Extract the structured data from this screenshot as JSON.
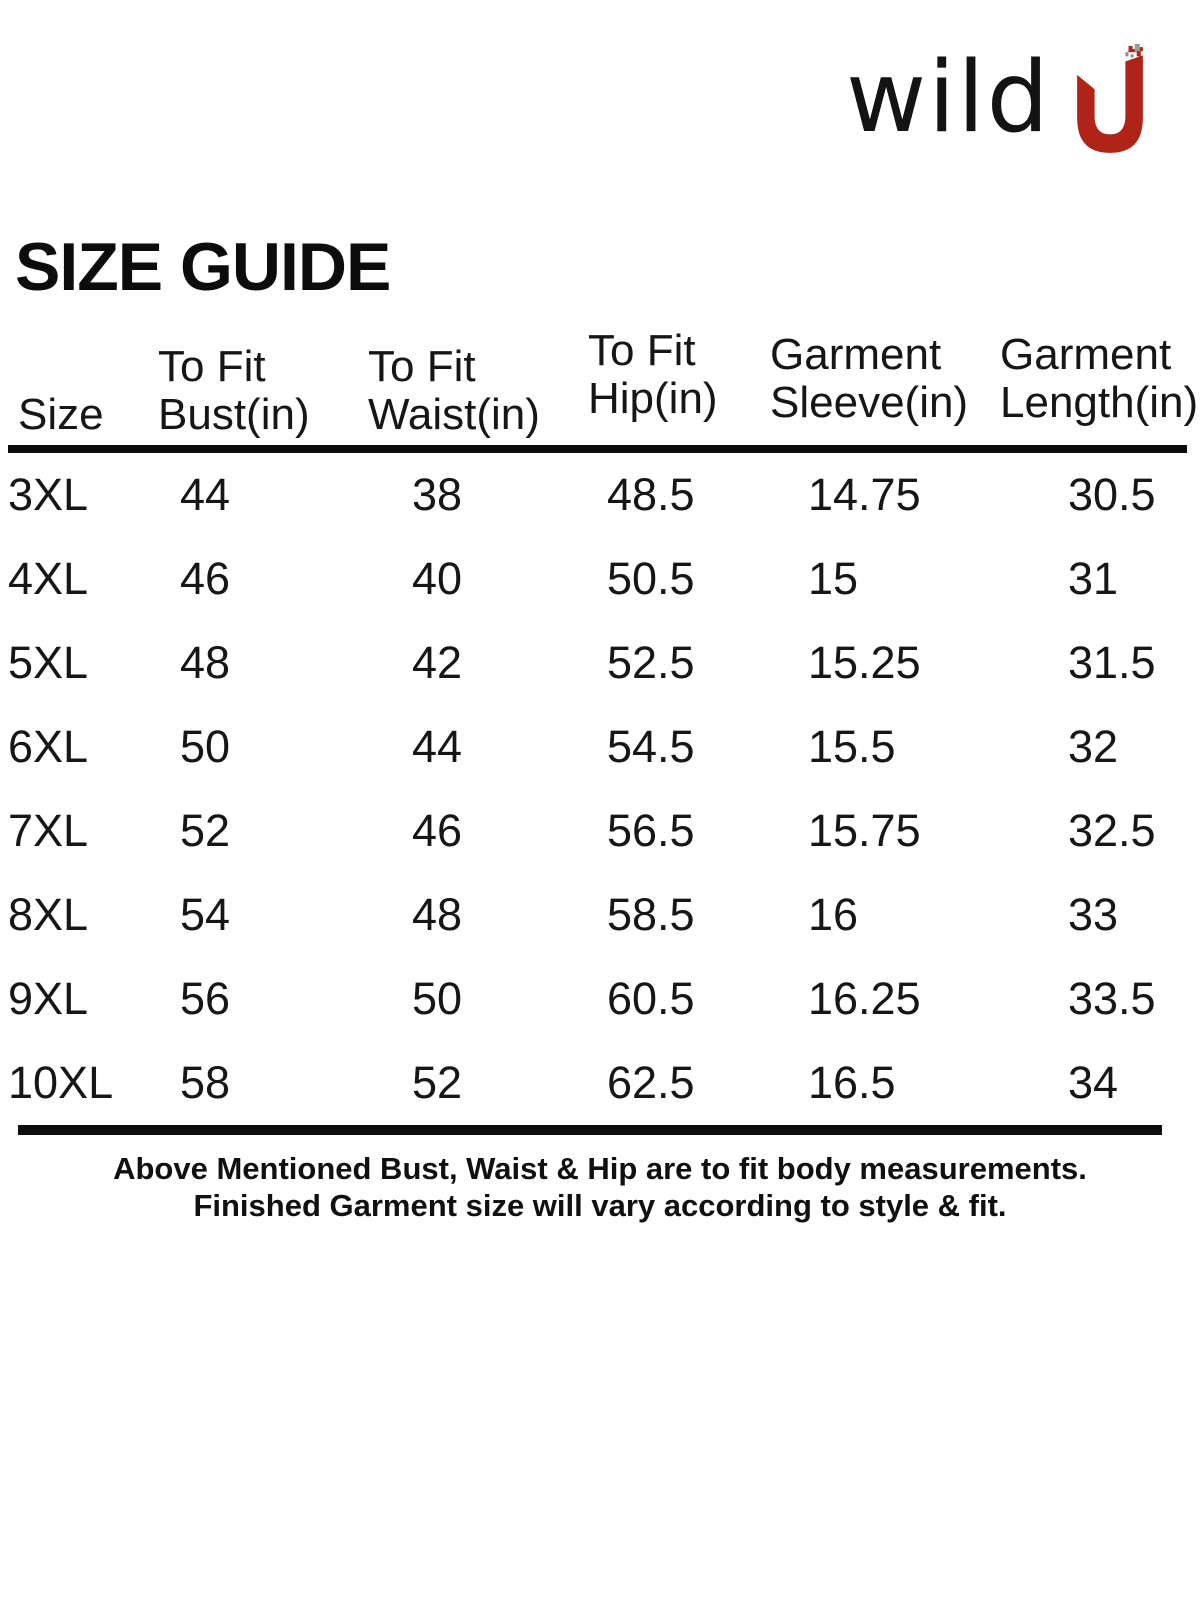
{
  "brand": {
    "wordmark": "wild",
    "mark_letter": "U",
    "mark_color": "#b02418",
    "mark_speckle_color": "#8e8e8e"
  },
  "page": {
    "title": "SIZE GUIDE"
  },
  "table": {
    "columns": [
      {
        "key": "size",
        "line1": "",
        "line2": "Size"
      },
      {
        "key": "bust",
        "line1": "To Fit",
        "line2": "Bust(in)"
      },
      {
        "key": "waist",
        "line1": "To Fit",
        "line2": "Waist(in)"
      },
      {
        "key": "hip",
        "line1": "To Fit",
        "line2": "Hip(in)"
      },
      {
        "key": "sleeve",
        "line1": "Garment",
        "line2": "Sleeve(in)"
      },
      {
        "key": "length",
        "line1": "Garment",
        "line2": "Length(in)"
      }
    ],
    "rows": [
      {
        "size": "3XL",
        "bust": "44",
        "waist": "38",
        "hip": "48.5",
        "sleeve": "14.75",
        "length": "30.5"
      },
      {
        "size": "4XL",
        "bust": "46",
        "waist": "40",
        "hip": "50.5",
        "sleeve": "15",
        "length": "31"
      },
      {
        "size": "5XL",
        "bust": "48",
        "waist": "42",
        "hip": "52.5",
        "sleeve": "15.25",
        "length": "31.5"
      },
      {
        "size": "6XL",
        "bust": "50",
        "waist": "44",
        "hip": "54.5",
        "sleeve": "15.5",
        "length": "32"
      },
      {
        "size": "7XL",
        "bust": "52",
        "waist": "46",
        "hip": "56.5",
        "sleeve": "15.75",
        "length": "32.5"
      },
      {
        "size": "8XL",
        "bust": "54",
        "waist": "48",
        "hip": "58.5",
        "sleeve": "16",
        "length": "33"
      },
      {
        "size": "9XL",
        "bust": "56",
        "waist": "50",
        "hip": "60.5",
        "sleeve": "16.25",
        "length": "33.5"
      },
      {
        "size": "10XL",
        "bust": "58",
        "waist": "52",
        "hip": "62.5",
        "sleeve": "16.5",
        "length": "34"
      }
    ]
  },
  "note": {
    "line1": "Above Mentioned Bust, Waist & Hip are to fit body measurements.",
    "line2": "Finished Garment size will vary according to style & fit."
  }
}
